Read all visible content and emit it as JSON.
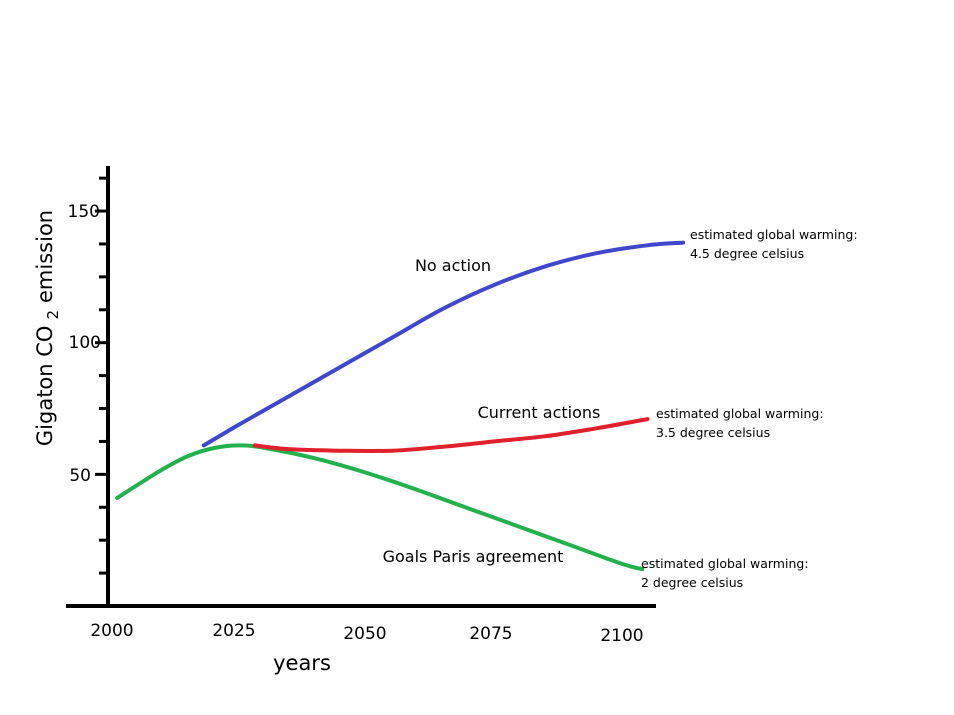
{
  "chart_data": {
    "type": "line",
    "xlabel": "years",
    "ylabel": "Gigaton CO",
    "ylabel_subscript": "2",
    "ylabel_suffix": "emission",
    "x_ticks": [
      "2000",
      "2025",
      "2050",
      "2075",
      "2100"
    ],
    "y_ticks": [
      "50",
      "100",
      "150"
    ],
    "xlim": [
      1990,
      2110
    ],
    "ylim": [
      0,
      165
    ],
    "grid": false,
    "series": [
      {
        "name": "No action",
        "color": "#3f48cc",
        "x": [
          2018,
          2025,
          2035,
          2045,
          2055,
          2065,
          2075,
          2085,
          2095,
          2105,
          2112
        ],
        "y": [
          61,
          69,
          80,
          91,
          102,
          113,
          122,
          129,
          134,
          137,
          138
        ]
      },
      {
        "name": "Current actions",
        "color": "#e0202a",
        "x": [
          2028,
          2035,
          2045,
          2055,
          2065,
          2075,
          2085,
          2095,
          2105
        ],
        "y": [
          61,
          59.5,
          59,
          59,
          60.5,
          62.5,
          64.5,
          67.5,
          71
        ]
      },
      {
        "name": "Goals Paris agreement",
        "color": "#22b14c",
        "x": [
          2001,
          2005,
          2010,
          2015,
          2020,
          2025,
          2030,
          2040,
          2050,
          2060,
          2070,
          2080,
          2090,
          2100,
          2104
        ],
        "y": [
          41,
          46,
          52,
          57,
          60,
          61,
          60,
          56,
          50.5,
          44,
          37,
          30,
          23,
          16,
          14
        ]
      }
    ],
    "annotations": [
      {
        "series": "No action",
        "line1": "estimated global warming:",
        "line2": "4.5 degree celsius"
      },
      {
        "series": "Current actions",
        "line1": "estimated global warming:",
        "line2": "3.5 degree celsius"
      },
      {
        "series": "Goals Paris agreement",
        "line1": "estimated global warming:",
        "line2": "2 degree celsius"
      }
    ]
  }
}
